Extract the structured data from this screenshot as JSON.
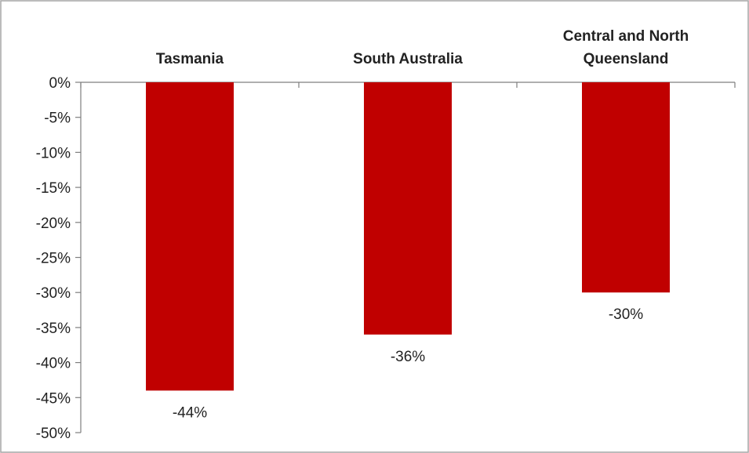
{
  "chart_data": {
    "type": "bar",
    "categories": [
      [
        "Tasmania"
      ],
      [
        "South Australia"
      ],
      [
        "Central and North",
        "Queensland"
      ]
    ],
    "values": [
      -44,
      -36,
      -30
    ],
    "data_labels": [
      "-44%",
      "-36%",
      "-30%"
    ],
    "ylim": [
      -50,
      0
    ],
    "y_ticks": [
      0,
      -5,
      -10,
      -15,
      -20,
      -25,
      -30,
      -35,
      -40,
      -45,
      -50
    ],
    "y_tick_labels": [
      "0%",
      "-5%",
      "-10%",
      "-15%",
      "-20%",
      "-25%",
      "-30%",
      "-35%",
      "-40%",
      "-45%",
      "-50%"
    ],
    "title": "",
    "xlabel": "",
    "ylabel": "",
    "grid": false,
    "legend": "none",
    "bar_color": "#C00000",
    "axis_color": "#7f7f7f",
    "border_color": "#a6a6a6"
  }
}
